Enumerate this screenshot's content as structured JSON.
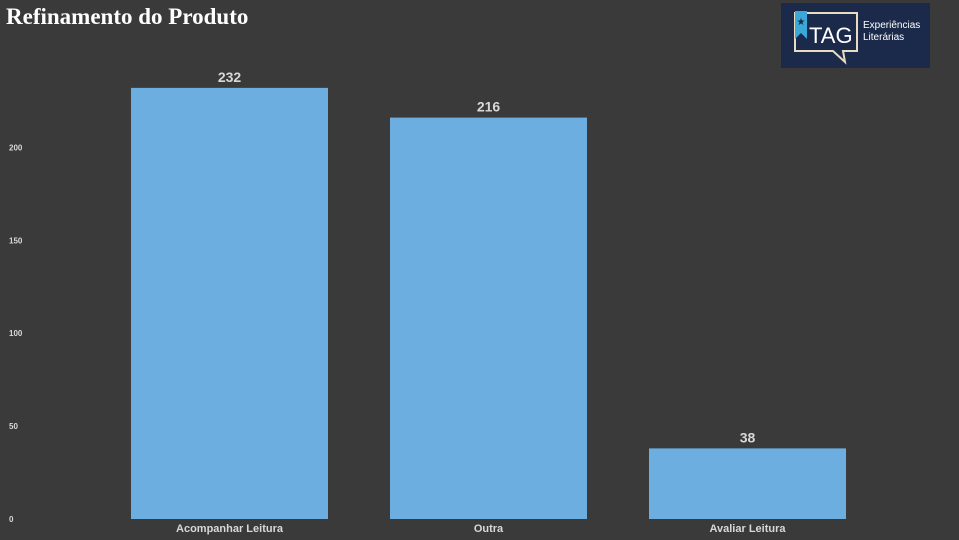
{
  "title": "Refinamento do Produto",
  "logo": {
    "mark": "TAG",
    "line1": "Experiências",
    "line2": "Literárias",
    "icon": "star-bookmark-icon"
  },
  "colors": {
    "background": "#3a3a3a",
    "bar": "#6caee0",
    "text": "#d8d8d8",
    "logo_bg": "#1b2a4a",
    "logo_accent": "#3aa8d8"
  },
  "chart_data": {
    "type": "bar",
    "categories": [
      "Acompanhar Leitura",
      "Outra",
      "Avaliar Leitura"
    ],
    "values": [
      232,
      216,
      38
    ],
    "yticks": [
      0,
      50,
      100,
      150,
      200
    ],
    "ylim": [
      0,
      240
    ],
    "grid": false,
    "legend": "none"
  }
}
